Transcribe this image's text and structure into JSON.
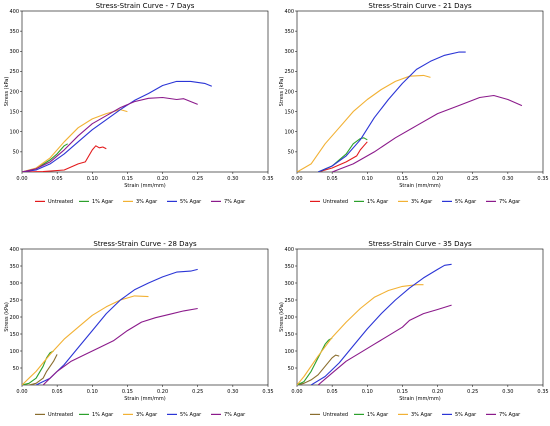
{
  "chart_data": [
    {
      "type": "line",
      "title": "Stress-Strain Curve - 7 Days",
      "xlabel": "Strain (mm/mm)",
      "ylabel": "Stress (kPa)",
      "xlim": [
        0,
        0.35
      ],
      "ylim": [
        0,
        400
      ],
      "xticks": [
        "0.00",
        "0.05",
        "0.10",
        "0.15",
        "0.20",
        "0.25",
        "0.30",
        "0.35"
      ],
      "yticks": [
        "50",
        "100",
        "150",
        "200",
        "250",
        "300",
        "350",
        "400"
      ],
      "grid": false,
      "legend": "below",
      "series": [
        {
          "name": "Untreated",
          "color": "#e31a1c",
          "points": [
            [
              0,
              0
            ],
            [
              0.03,
              1
            ],
            [
              0.06,
              5
            ],
            [
              0.08,
              20
            ],
            [
              0.09,
              25
            ],
            [
              0.095,
              40
            ],
            [
              0.1,
              55
            ],
            [
              0.105,
              65
            ],
            [
              0.11,
              60
            ],
            [
              0.115,
              62
            ],
            [
              0.12,
              58
            ]
          ]
        },
        {
          "name": "1% Agar",
          "color": "#2ca02c",
          "points": [
            [
              0,
              0
            ],
            [
              0.02,
              8
            ],
            [
              0.04,
              30
            ],
            [
              0.05,
              45
            ],
            [
              0.06,
              65
            ],
            [
              0.065,
              70
            ]
          ]
        },
        {
          "name": "3% Agar",
          "color": "#f2b134",
          "points": [
            [
              0,
              0
            ],
            [
              0.02,
              10
            ],
            [
              0.04,
              35
            ],
            [
              0.06,
              75
            ],
            [
              0.08,
              110
            ],
            [
              0.1,
              132
            ],
            [
              0.12,
              145
            ],
            [
              0.14,
              155
            ],
            [
              0.15,
              150
            ]
          ]
        },
        {
          "name": "5% Agar",
          "color": "#2b35d6",
          "points": [
            [
              0,
              0
            ],
            [
              0.02,
              5
            ],
            [
              0.04,
              20
            ],
            [
              0.06,
              45
            ],
            [
              0.08,
              75
            ],
            [
              0.1,
              105
            ],
            [
              0.12,
              130
            ],
            [
              0.14,
              155
            ],
            [
              0.16,
              178
            ],
            [
              0.18,
              195
            ],
            [
              0.2,
              215
            ],
            [
              0.22,
              225
            ],
            [
              0.24,
              225
            ],
            [
              0.26,
              220
            ],
            [
              0.27,
              213
            ]
          ]
        },
        {
          "name": "7% Agar",
          "color": "#8b1a8b",
          "points": [
            [
              0,
              0
            ],
            [
              0.02,
              8
            ],
            [
              0.04,
              25
            ],
            [
              0.06,
              55
            ],
            [
              0.08,
              90
            ],
            [
              0.1,
              120
            ],
            [
              0.12,
              140
            ],
            [
              0.14,
              160
            ],
            [
              0.16,
              175
            ],
            [
              0.18,
              183
            ],
            [
              0.2,
              185
            ],
            [
              0.22,
              180
            ],
            [
              0.23,
              182
            ],
            [
              0.25,
              168
            ]
          ]
        }
      ]
    },
    {
      "type": "line",
      "title": "Stress-Strain Curve - 21 Days",
      "xlabel": "Strain (mm/mm)",
      "ylabel": "Stress (kPa)",
      "xlim": [
        0,
        0.35
      ],
      "ylim": [
        0,
        400
      ],
      "xticks": [
        "0.00",
        "0.05",
        "0.10",
        "0.15",
        "0.20",
        "0.25",
        "0.30",
        "0.35"
      ],
      "yticks": [
        "50",
        "100",
        "150",
        "200",
        "250",
        "300",
        "350",
        "400"
      ],
      "grid": false,
      "legend": "below",
      "series": [
        {
          "name": "Untreated",
          "color": "#e31a1c",
          "points": [
            [
              0.03,
              0
            ],
            [
              0.05,
              10
            ],
            [
              0.07,
              25
            ],
            [
              0.085,
              40
            ],
            [
              0.09,
              55
            ],
            [
              0.095,
              65
            ],
            [
              0.1,
              75
            ]
          ]
        },
        {
          "name": "1% Agar",
          "color": "#2ca02c",
          "points": [
            [
              0.03,
              0
            ],
            [
              0.05,
              15
            ],
            [
              0.07,
              45
            ],
            [
              0.08,
              70
            ],
            [
              0.09,
              83
            ],
            [
              0.095,
              85
            ],
            [
              0.1,
              80
            ]
          ]
        },
        {
          "name": "3% Agar",
          "color": "#f2b134",
          "points": [
            [
              0,
              0
            ],
            [
              0.01,
              10
            ],
            [
              0.02,
              20
            ],
            [
              0.04,
              70
            ],
            [
              0.06,
              110
            ],
            [
              0.08,
              150
            ],
            [
              0.1,
              180
            ],
            [
              0.12,
              205
            ],
            [
              0.14,
              225
            ],
            [
              0.16,
              238
            ],
            [
              0.18,
              240
            ],
            [
              0.19,
              235
            ]
          ]
        },
        {
          "name": "5% Agar",
          "color": "#2b35d6",
          "points": [
            [
              0.03,
              0
            ],
            [
              0.05,
              15
            ],
            [
              0.07,
              40
            ],
            [
              0.09,
              80
            ],
            [
              0.11,
              135
            ],
            [
              0.13,
              180
            ],
            [
              0.15,
              220
            ],
            [
              0.17,
              255
            ],
            [
              0.19,
              275
            ],
            [
              0.21,
              290
            ],
            [
              0.23,
              298
            ],
            [
              0.24,
              298
            ]
          ]
        },
        {
          "name": "7% Agar",
          "color": "#8b1a8b",
          "points": [
            [
              0.05,
              0
            ],
            [
              0.08,
              20
            ],
            [
              0.11,
              50
            ],
            [
              0.14,
              85
            ],
            [
              0.17,
              115
            ],
            [
              0.2,
              145
            ],
            [
              0.23,
              165
            ],
            [
              0.26,
              185
            ],
            [
              0.28,
              190
            ],
            [
              0.3,
              180
            ],
            [
              0.32,
              165
            ]
          ]
        }
      ]
    },
    {
      "type": "line",
      "title": "Stress-Strain Curve - 28 Days",
      "xlabel": "Strain (mm/mm)",
      "ylabel": "Stress (kPa)",
      "xlim": [
        0,
        0.35
      ],
      "ylim": [
        0,
        400
      ],
      "xticks": [
        "0.00",
        "0.05",
        "0.10",
        "0.15",
        "0.20",
        "0.25",
        "0.30",
        "0.35"
      ],
      "yticks": [
        "50",
        "100",
        "150",
        "200",
        "250",
        "300",
        "350",
        "400"
      ],
      "grid": false,
      "legend": "below",
      "series": [
        {
          "name": "Untreated",
          "color": "#8a6d2e",
          "points": [
            [
              0,
              0
            ],
            [
              0.01,
              0
            ],
            [
              0.02,
              5
            ],
            [
              0.03,
              20
            ],
            [
              0.035,
              40
            ],
            [
              0.04,
              55
            ],
            [
              0.045,
              70
            ],
            [
              0.05,
              90
            ]
          ]
        },
        {
          "name": "1% Agar",
          "color": "#2ca02c",
          "points": [
            [
              0,
              0
            ],
            [
              0.01,
              5
            ],
            [
              0.02,
              20
            ],
            [
              0.03,
              55
            ],
            [
              0.035,
              80
            ],
            [
              0.04,
              95
            ],
            [
              0.045,
              100
            ]
          ]
        },
        {
          "name": "3% Agar",
          "color": "#f2b134",
          "points": [
            [
              0,
              0
            ],
            [
              0.01,
              20
            ],
            [
              0.02,
              40
            ],
            [
              0.04,
              90
            ],
            [
              0.06,
              135
            ],
            [
              0.08,
              170
            ],
            [
              0.1,
              205
            ],
            [
              0.12,
              230
            ],
            [
              0.14,
              250
            ],
            [
              0.16,
              262
            ],
            [
              0.18,
              260
            ]
          ]
        },
        {
          "name": "5% Agar",
          "color": "#2b35d6",
          "points": [
            [
              0.02,
              0
            ],
            [
              0.04,
              20
            ],
            [
              0.06,
              60
            ],
            [
              0.08,
              110
            ],
            [
              0.1,
              160
            ],
            [
              0.12,
              210
            ],
            [
              0.14,
              250
            ],
            [
              0.16,
              280
            ],
            [
              0.18,
              300
            ],
            [
              0.2,
              318
            ],
            [
              0.22,
              332
            ],
            [
              0.24,
              335
            ],
            [
              0.25,
              340
            ]
          ]
        },
        {
          "name": "7% Agar",
          "color": "#8b1a8b",
          "points": [
            [
              0.03,
              0
            ],
            [
              0.05,
              40
            ],
            [
              0.07,
              70
            ],
            [
              0.09,
              90
            ],
            [
              0.11,
              110
            ],
            [
              0.13,
              130
            ],
            [
              0.15,
              160
            ],
            [
              0.17,
              185
            ],
            [
              0.19,
              198
            ],
            [
              0.21,
              208
            ],
            [
              0.23,
              218
            ],
            [
              0.25,
              225
            ]
          ]
        }
      ]
    },
    {
      "type": "line",
      "title": "Stress-Strain Curve - 35 Days",
      "xlabel": "Strain (mm/mm)",
      "ylabel": "Stress (kPa)",
      "xlim": [
        0,
        0.35
      ],
      "ylim": [
        0,
        400
      ],
      "xticks": [
        "0.00",
        "0.05",
        "0.10",
        "0.15",
        "0.20",
        "0.25",
        "0.30",
        "0.35"
      ],
      "yticks": [
        "50",
        "100",
        "150",
        "200",
        "250",
        "300",
        "350",
        "400"
      ],
      "grid": false,
      "legend": "below",
      "series": [
        {
          "name": "Untreated",
          "color": "#8a6d2e",
          "points": [
            [
              0,
              0
            ],
            [
              0.01,
              5
            ],
            [
              0.02,
              15
            ],
            [
              0.03,
              30
            ],
            [
              0.04,
              55
            ],
            [
              0.05,
              80
            ],
            [
              0.055,
              88
            ],
            [
              0.06,
              85
            ]
          ]
        },
        {
          "name": "1% Agar",
          "color": "#2ca02c",
          "points": [
            [
              0,
              0
            ],
            [
              0.01,
              10
            ],
            [
              0.02,
              40
            ],
            [
              0.03,
              80
            ],
            [
              0.04,
              120
            ],
            [
              0.045,
              132
            ],
            [
              0.05,
              138
            ]
          ]
        },
        {
          "name": "3% Agar",
          "color": "#f2b134",
          "points": [
            [
              0,
              0
            ],
            [
              0.01,
              25
            ],
            [
              0.03,
              85
            ],
            [
              0.05,
              140
            ],
            [
              0.07,
              185
            ],
            [
              0.09,
              225
            ],
            [
              0.11,
              258
            ],
            [
              0.13,
              278
            ],
            [
              0.15,
              290
            ],
            [
              0.17,
              295
            ],
            [
              0.18,
              295
            ]
          ]
        },
        {
          "name": "5% Agar",
          "color": "#2b35d6",
          "points": [
            [
              0.02,
              0
            ],
            [
              0.04,
              25
            ],
            [
              0.06,
              65
            ],
            [
              0.08,
              115
            ],
            [
              0.1,
              165
            ],
            [
              0.12,
              210
            ],
            [
              0.14,
              250
            ],
            [
              0.16,
              285
            ],
            [
              0.18,
              315
            ],
            [
              0.2,
              340
            ],
            [
              0.21,
              352
            ],
            [
              0.22,
              355
            ]
          ]
        },
        {
          "name": "7% Agar",
          "color": "#8b1a8b",
          "points": [
            [
              0.03,
              0
            ],
            [
              0.05,
              35
            ],
            [
              0.07,
              70
            ],
            [
              0.09,
              95
            ],
            [
              0.11,
              120
            ],
            [
              0.13,
              145
            ],
            [
              0.15,
              170
            ],
            [
              0.16,
              190
            ],
            [
              0.18,
              210
            ],
            [
              0.2,
              222
            ],
            [
              0.22,
              235
            ]
          ]
        }
      ]
    }
  ]
}
